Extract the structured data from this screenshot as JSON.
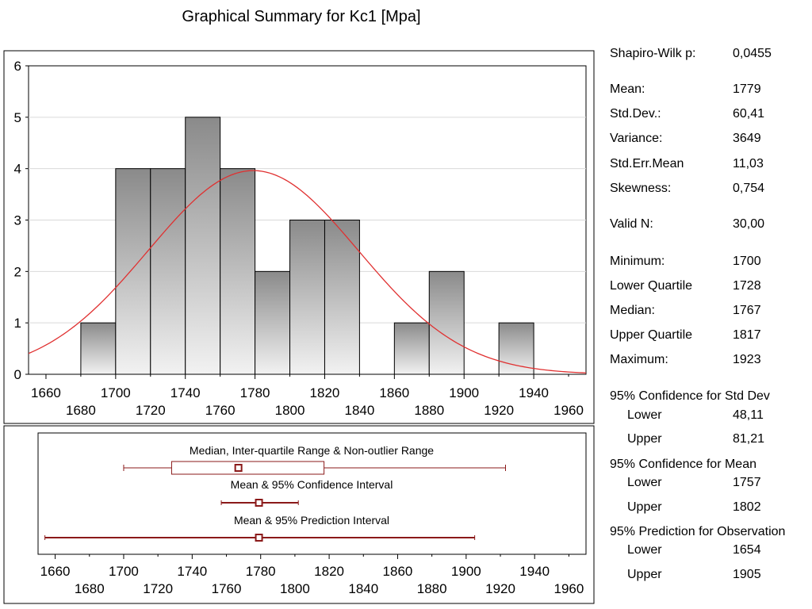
{
  "title": "Graphical Summary for Kc1  [Mpa]",
  "chart_data": [
    {
      "type": "bar",
      "subtype": "histogram",
      "bin_width": 20,
      "bins": [
        {
          "start": 1680,
          "end": 1700,
          "count": 1
        },
        {
          "start": 1700,
          "end": 1720,
          "count": 4
        },
        {
          "start": 1720,
          "end": 1740,
          "count": 4
        },
        {
          "start": 1740,
          "end": 1760,
          "count": 5
        },
        {
          "start": 1760,
          "end": 1780,
          "count": 4
        },
        {
          "start": 1780,
          "end": 1800,
          "count": 2
        },
        {
          "start": 1800,
          "end": 1820,
          "count": 3
        },
        {
          "start": 1820,
          "end": 1840,
          "count": 3
        },
        {
          "start": 1840,
          "end": 1860,
          "count": 0
        },
        {
          "start": 1860,
          "end": 1880,
          "count": 1
        },
        {
          "start": 1880,
          "end": 1900,
          "count": 2
        },
        {
          "start": 1900,
          "end": 1920,
          "count": 0
        },
        {
          "start": 1920,
          "end": 1940,
          "count": 1
        }
      ],
      "normal_curve": {
        "mean": 1779,
        "std": 60.41,
        "n": 30,
        "color": "#e03030"
      },
      "xlim": [
        1650,
        1970
      ],
      "ylim": [
        0,
        6
      ],
      "xticks_upper": [
        "1660",
        "1700",
        "1740",
        "1780",
        "1820",
        "1860",
        "1900",
        "1940"
      ],
      "xticks_lower": [
        "1680",
        "1720",
        "1760",
        "1800",
        "1840",
        "1880",
        "1920",
        "1960"
      ],
      "yticks": [
        "0",
        "1",
        "2",
        "3",
        "4",
        "5",
        "6"
      ],
      "grid": true
    },
    {
      "type": "box",
      "xlim": [
        1650,
        1970
      ],
      "labels": {
        "box": "Median, Inter-quartile Range & Non-outlier Range",
        "ci": "Mean & 95% Confidence Interval",
        "pi": "Mean & 95% Prediction Interval"
      },
      "box": {
        "min": 1700,
        "q1": 1728,
        "median": 1767,
        "q3": 1817,
        "max": 1923
      },
      "ci": {
        "mean": 1779,
        "lower": 1757,
        "upper": 1802
      },
      "pi": {
        "mean": 1779,
        "lower": 1654,
        "upper": 1905
      },
      "color": "#8b1a1a",
      "xticks_upper": [
        "1660",
        "1700",
        "1740",
        "1780",
        "1820",
        "1860",
        "1900",
        "1940"
      ],
      "xticks_lower": [
        "1680",
        "1720",
        "1760",
        "1800",
        "1840",
        "1880",
        "1920",
        "1960"
      ]
    }
  ],
  "stats": {
    "shapiro": {
      "label": "Shapiro-Wilk p:",
      "value": "0,0455"
    },
    "mean": {
      "label": "Mean:",
      "value": "1779"
    },
    "std": {
      "label": "Std.Dev.:",
      "value": "60,41"
    },
    "variance": {
      "label": "Variance:",
      "value": "3649"
    },
    "sem": {
      "label": "Std.Err.Mean",
      "value": "11,03"
    },
    "skewness": {
      "label": "Skewness:",
      "value": "0,754"
    },
    "valid_n": {
      "label": "Valid N:",
      "value": "30,00"
    },
    "minimum": {
      "label": "Minimum:",
      "value": "1700"
    },
    "lower_quartile": {
      "label": "Lower Quartile",
      "value": "1728"
    },
    "median": {
      "label": "Median:",
      "value": "1767"
    },
    "upper_quartile": {
      "label": "Upper Quartile",
      "value": "1817"
    },
    "maximum": {
      "label": "Maximum:",
      "value": "1923"
    },
    "ci_std_heading": "95% Confidence for Std Dev",
    "ci_std_lower": {
      "label": "Lower",
      "value": "48,11"
    },
    "ci_std_upper": {
      "label": "Upper",
      "value": "81,21"
    },
    "ci_mean_heading": "95% Confidence for Mean",
    "ci_mean_lower": {
      "label": "Lower",
      "value": "1757"
    },
    "ci_mean_upper": {
      "label": "Upper",
      "value": "1802"
    },
    "pred_heading": "95% Prediction for Observation",
    "pred_lower": {
      "label": "Lower",
      "value": "1654"
    },
    "pred_upper": {
      "label": "Upper",
      "value": "1905"
    }
  }
}
